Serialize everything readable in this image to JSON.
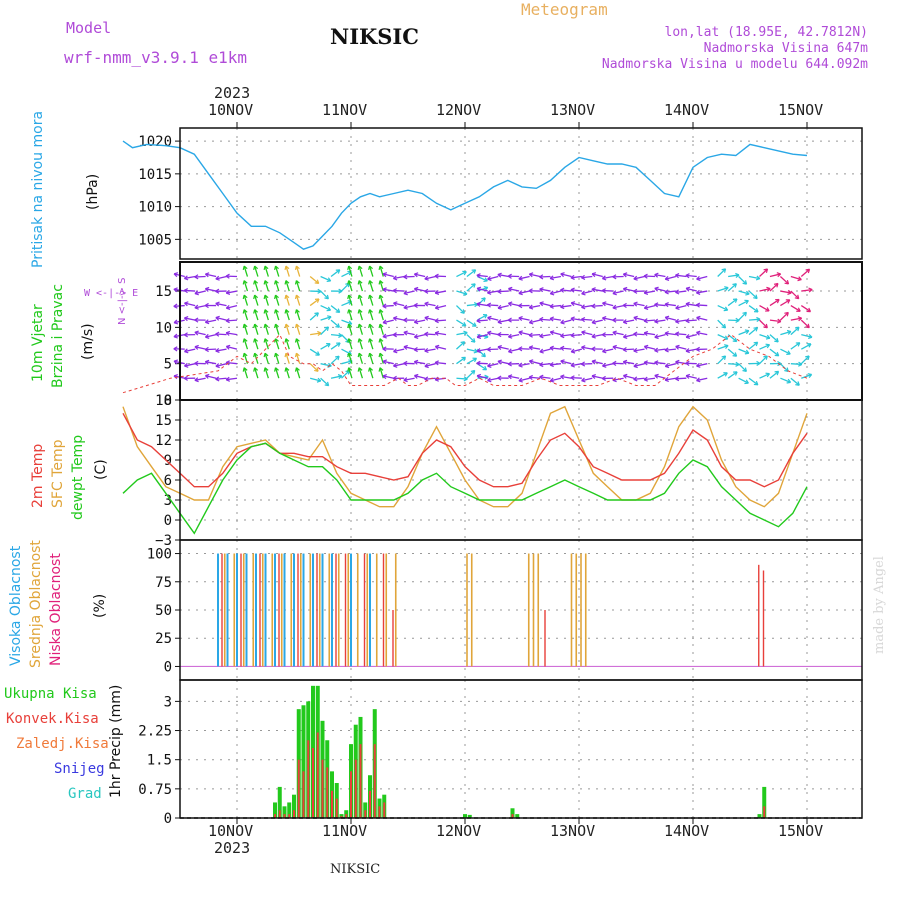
{
  "header": {
    "model_label": "Model",
    "model_name": "wrf-nmm_v3.9.1  e1km",
    "station": "NIKSIC",
    "meteogram": "Meteogram",
    "lonlat": "lon,lat (18.95E, 42.7812N)",
    "altitude": "Nadmorska Visina 647m",
    "model_altitude": "Nadmorska Visina u modelu 644.092m",
    "footer_station": "NIKSIC",
    "watermark": "made by Angel"
  },
  "colors": {
    "pressure": "#2aa7e6",
    "temp2m": "#e8403a",
    "sfc": "#e0a53a",
    "dewpt": "#22c91c",
    "wind_purple": "#8a2be2",
    "wind_blue": "#1f3ee0",
    "wind_cyan": "#29c7d8",
    "wind_green": "#22c91c",
    "wind_orange": "#e8b43a",
    "wind_magenta": "#e0207a",
    "total_precip": "#22c91c",
    "conv_precip": "#e8403a",
    "label_purple": "#b04bd8",
    "label_orange": "#f0a040"
  },
  "dates": {
    "year": "2023",
    "days": [
      "10NOV",
      "11NOV",
      "12NOV",
      "13NOV",
      "14NOV",
      "15NOV"
    ]
  },
  "panels": {
    "pressure": {
      "label": "Pritisak na nivou mora",
      "unit": "(hPa)",
      "ticks": [
        "1005",
        "1010",
        "1015",
        "1020"
      ]
    },
    "wind": {
      "label1": "10m Vjetar",
      "label2": "Brzina i Pravac",
      "unit": "(m/s)",
      "ticks": [
        "0",
        "5",
        "10",
        "15"
      ],
      "compass": "W <-|-> E",
      "compass2": "N  <-|->  S"
    },
    "temp": {
      "label1": "2m Temp",
      "label2": "SFC Temp",
      "label3": "dewpt Temp",
      "unit": "(C)",
      "ticks": [
        "−3",
        "0",
        "3",
        "6",
        "9",
        "12",
        "15",
        "18"
      ]
    },
    "cloud": {
      "label1": "Visoka Oblacnost",
      "label2": "Srednja Oblacnost",
      "label3": "Niska Oblacnost",
      "unit": "(%)",
      "ticks": [
        "0",
        "25",
        "50",
        "75",
        "100"
      ]
    },
    "precip": {
      "legend": [
        "Ukupna Kisa",
        "Konvek.Kisa",
        "Zaledj.Kisa",
        "Snijeg",
        "Grad"
      ],
      "unit": "1hr Precip (mm)",
      "ticks": [
        "0",
        "0.75",
        "1.5",
        "2.25",
        "3"
      ]
    }
  },
  "chart_data": {
    "type": "line",
    "x_unit": "hours since 2023-11-09 12:00",
    "x_range": [
      0,
      144
    ],
    "pressure": {
      "ylim": [
        1002,
        1022
      ],
      "x": [
        0,
        2,
        5,
        9,
        12,
        15,
        18,
        21,
        24,
        27,
        30,
        33,
        36,
        38,
        40,
        42,
        44,
        46,
        48,
        50,
        52,
        54,
        57,
        60,
        63,
        66,
        69,
        72,
        75,
        78,
        81,
        84,
        87,
        90,
        93,
        96,
        99,
        102,
        105,
        108,
        111,
        114,
        117,
        120,
        123,
        126,
        129,
        132,
        135,
        138,
        141,
        144
      ],
      "y": [
        1020,
        1019,
        1019.5,
        1019.3,
        1019,
        1018,
        1015,
        1012,
        1009,
        1007,
        1007,
        1006,
        1004.5,
        1003.5,
        1004,
        1005.5,
        1007,
        1009,
        1010.5,
        1011.5,
        1012,
        1011.5,
        1012,
        1012.5,
        1012,
        1010.5,
        1009.5,
        1010.5,
        1011.5,
        1013,
        1014,
        1013,
        1012.8,
        1014,
        1016,
        1017.5,
        1017,
        1016.5,
        1016.5,
        1016,
        1014,
        1012,
        1011.5,
        1016,
        1017.5,
        1018,
        1017.8,
        1019.5,
        1019,
        1018.5,
        1018,
        1017.8
      ]
    },
    "wind": {
      "ylim": [
        0,
        19
      ],
      "speed_x": [
        0,
        5,
        10,
        15,
        20,
        22,
        24,
        27,
        30,
        33,
        35,
        38,
        40,
        42,
        44,
        46,
        48,
        50,
        52,
        55,
        58,
        60,
        62,
        65,
        68,
        70,
        72,
        75,
        78,
        80,
        84,
        88,
        92,
        96,
        100,
        104,
        108,
        112,
        116,
        120,
        124,
        128,
        132,
        136,
        140,
        144
      ],
      "speed_y": [
        1,
        2,
        3,
        3.5,
        4,
        5,
        6,
        5,
        7,
        9,
        6,
        5,
        5,
        4,
        5,
        4,
        2,
        2,
        2,
        2,
        3,
        2,
        2,
        3,
        3,
        2,
        2,
        3,
        2,
        2,
        2,
        3,
        2,
        2,
        2,
        3,
        2,
        2,
        4,
        6,
        7,
        9,
        7,
        6,
        4,
        3
      ]
    },
    "temp": {
      "ylim": [
        -3,
        18
      ],
      "x": [
        0,
        3,
        6,
        9,
        12,
        15,
        18,
        21,
        24,
        27,
        30,
        33,
        36,
        39,
        42,
        45,
        48,
        51,
        54,
        57,
        60,
        63,
        66,
        69,
        72,
        75,
        78,
        81,
        84,
        87,
        90,
        93,
        96,
        99,
        102,
        105,
        108,
        111,
        114,
        117,
        120,
        123,
        126,
        129,
        132,
        135,
        138,
        141,
        144
      ],
      "t2m": [
        16,
        12,
        11,
        9,
        7,
        5,
        5,
        7,
        10,
        11,
        11.5,
        10,
        10,
        9.5,
        9.5,
        8,
        7,
        7,
        6.5,
        6,
        6.5,
        10,
        12,
        11,
        8,
        6,
        5,
        5,
        5.5,
        9,
        12,
        13,
        11,
        8,
        7,
        6,
        6,
        6,
        7,
        10,
        13.5,
        12,
        8,
        6,
        6,
        5,
        6,
        10,
        13
      ],
      "sfc": [
        17,
        11,
        8,
        5,
        4,
        3,
        3,
        8,
        11,
        11.5,
        12,
        10,
        9.5,
        9,
        12,
        7,
        4,
        3,
        2,
        2,
        5,
        10,
        14,
        10,
        6,
        3,
        2,
        2,
        4,
        10,
        16,
        17,
        12,
        7,
        5,
        3,
        3,
        4,
        8,
        14,
        17,
        15,
        9,
        5,
        3,
        2,
        4,
        10,
        16
      ],
      "dewpt": [
        4,
        6,
        7,
        4,
        1,
        -2,
        2,
        6,
        9,
        11,
        11.5,
        10,
        9,
        8,
        8,
        6,
        3,
        3,
        3,
        3,
        4,
        6,
        7,
        5,
        4,
        3,
        3,
        3,
        3,
        4,
        5,
        6,
        5,
        4,
        3,
        3,
        3,
        3,
        4,
        7,
        9,
        8,
        5,
        3,
        1,
        0,
        -1,
        1,
        5
      ]
    },
    "cloud": {
      "ylim": [
        0,
        100
      ],
      "high_x": [
        8,
        10,
        12,
        14,
        16,
        18,
        20,
        22,
        24,
        26,
        28,
        30,
        32,
        36,
        40
      ],
      "mid_x": [
        9,
        11,
        13,
        15,
        17,
        19,
        21,
        23,
        25,
        27,
        29,
        31,
        33,
        35,
        37,
        39,
        41,
        43,
        45,
        60,
        61,
        73,
        74,
        75,
        82,
        83,
        84,
        85
      ],
      "low_x": [
        8,
        12,
        16,
        20,
        24,
        28,
        32,
        34,
        38,
        42,
        44,
        76,
        121,
        122
      ],
      "low_values": [
        100,
        100,
        100,
        100,
        100,
        100,
        100,
        100,
        100,
        100,
        50,
        50,
        90,
        85
      ]
    },
    "precip": {
      "ylim": [
        0,
        3.5
      ],
      "x": [
        20,
        21,
        22,
        23,
        24,
        25,
        26,
        27,
        28,
        29,
        30,
        31,
        32,
        33,
        34,
        35,
        36,
        37,
        38,
        39,
        40,
        41,
        42,
        43,
        60,
        61,
        70,
        71,
        122,
        123
      ],
      "total": [
        0.4,
        0.8,
        0.3,
        0.4,
        0.6,
        2.8,
        2.9,
        3.0,
        3.4,
        3.4,
        2.5,
        2.0,
        1.2,
        0.9,
        0.1,
        0.2,
        1.9,
        2.4,
        2.6,
        0.4,
        1.1,
        2.8,
        0.5,
        0.6,
        0.1,
        0.08,
        0.25,
        0.1,
        0.1,
        0.8
      ],
      "convective": [
        0.1,
        0.2,
        0.1,
        0.1,
        0.2,
        1.5,
        1.2,
        2.0,
        1.8,
        2.2,
        1.5,
        1.3,
        0.7,
        0.5,
        0.05,
        0.1,
        1.2,
        1.5,
        1.9,
        0.2,
        0.7,
        1.9,
        0.3,
        0.4,
        0,
        0,
        0.1,
        0,
        0,
        0.3
      ]
    }
  }
}
